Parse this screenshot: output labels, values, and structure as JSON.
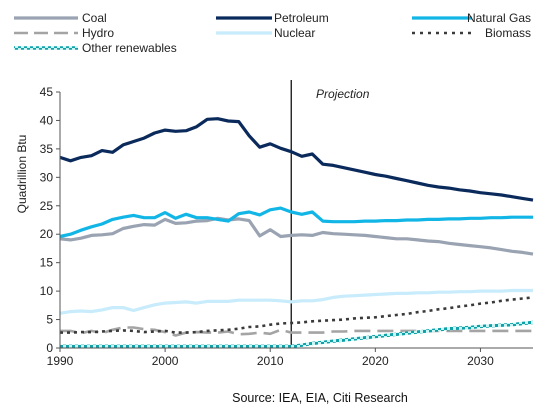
{
  "chart_data": {
    "type": "line",
    "title": "",
    "xlabel": "",
    "ylabel": "Quadrillion Btu",
    "xlim": [
      1990,
      2035
    ],
    "ylim": [
      0,
      45
    ],
    "x_ticks": [
      "1990",
      "2000",
      "2010",
      "2020",
      "2030"
    ],
    "y_ticks": [
      "0",
      "5",
      "10",
      "15",
      "20",
      "25",
      "30",
      "35",
      "40",
      "45"
    ],
    "grid": false,
    "legend": "top",
    "annotation": {
      "label": "Projection",
      "x": 2012
    },
    "source": "Source: IEA, EIA, Citi Research",
    "x": [
      1990,
      1991,
      1992,
      1993,
      1994,
      1995,
      1996,
      1997,
      1998,
      1999,
      2000,
      2001,
      2002,
      2003,
      2004,
      2005,
      2006,
      2007,
      2008,
      2009,
      2010,
      2011,
      2012,
      2013,
      2014,
      2015,
      2016,
      2017,
      2018,
      2019,
      2020,
      2021,
      2022,
      2023,
      2024,
      2025,
      2026,
      2027,
      2028,
      2029,
      2030,
      2031,
      2032,
      2033,
      2034,
      2035
    ],
    "series": [
      {
        "name": "Coal",
        "color": "#9aa3b2",
        "dash": "solid",
        "width": 3.2,
        "values": [
          19.2,
          19.0,
          19.3,
          19.8,
          19.9,
          20.1,
          21.0,
          21.4,
          21.7,
          21.6,
          22.6,
          21.9,
          22.0,
          22.3,
          22.4,
          22.8,
          22.5,
          22.7,
          22.4,
          19.7,
          20.8,
          19.6,
          19.8,
          19.9,
          19.8,
          20.3,
          20.1,
          20.0,
          19.9,
          19.8,
          19.6,
          19.4,
          19.2,
          19.2,
          19.0,
          18.8,
          18.7,
          18.4,
          18.2,
          18.0,
          17.8,
          17.6,
          17.3,
          17.0,
          16.8,
          16.5
        ]
      },
      {
        "name": "Petroleum",
        "color": "#0b2a5c",
        "dash": "solid",
        "width": 3.2,
        "values": [
          33.5,
          32.9,
          33.5,
          33.8,
          34.7,
          34.4,
          35.7,
          36.3,
          36.9,
          37.8,
          38.3,
          38.1,
          38.2,
          38.9,
          40.2,
          40.3,
          39.9,
          39.8,
          37.3,
          35.3,
          35.9,
          35.1,
          34.5,
          33.7,
          34.1,
          32.3,
          32.1,
          31.7,
          31.3,
          30.9,
          30.5,
          30.2,
          29.8,
          29.4,
          29.0,
          28.6,
          28.3,
          28.1,
          27.8,
          27.6,
          27.3,
          27.1,
          26.9,
          26.6,
          26.3,
          26.0
        ]
      },
      {
        "name": "Natural Gas",
        "color": "#12b6e6",
        "dash": "solid",
        "width": 3.2,
        "values": [
          19.6,
          20.0,
          20.7,
          21.3,
          21.8,
          22.6,
          23.0,
          23.3,
          22.9,
          22.9,
          23.8,
          22.8,
          23.5,
          22.9,
          22.9,
          22.6,
          22.3,
          23.6,
          23.9,
          23.4,
          24.3,
          24.6,
          23.9,
          23.5,
          23.9,
          22.3,
          22.2,
          22.2,
          22.2,
          22.3,
          22.3,
          22.4,
          22.4,
          22.5,
          22.5,
          22.6,
          22.6,
          22.7,
          22.7,
          22.8,
          22.8,
          22.9,
          22.9,
          23.0,
          23.0,
          23.0
        ]
      },
      {
        "name": "Hydro",
        "color": "#a4a4a4",
        "dash": "longdash",
        "width": 2.6,
        "values": [
          3.0,
          3.0,
          2.6,
          3.0,
          2.6,
          3.2,
          3.6,
          3.6,
          3.3,
          3.2,
          2.8,
          2.2,
          2.7,
          2.8,
          2.7,
          2.7,
          2.9,
          2.4,
          2.5,
          2.7,
          2.5,
          3.2,
          2.7,
          2.7,
          2.7,
          2.7,
          2.9,
          2.9,
          3.0,
          3.0,
          3.0,
          3.0,
          3.0,
          3.0,
          3.0,
          3.0,
          3.0,
          3.0,
          3.0,
          3.0,
          3.0,
          3.0,
          3.0,
          3.0,
          3.0,
          3.0
        ]
      },
      {
        "name": "Nuclear",
        "color": "#c8ecfb",
        "dash": "solid",
        "width": 3.2,
        "values": [
          6.1,
          6.4,
          6.5,
          6.4,
          6.7,
          7.1,
          7.1,
          6.6,
          7.1,
          7.6,
          7.9,
          8.0,
          8.1,
          7.9,
          8.2,
          8.2,
          8.2,
          8.4,
          8.4,
          8.4,
          8.4,
          8.3,
          8.1,
          8.3,
          8.3,
          8.5,
          8.9,
          9.1,
          9.2,
          9.3,
          9.4,
          9.5,
          9.6,
          9.6,
          9.7,
          9.7,
          9.8,
          9.8,
          9.9,
          9.9,
          10.0,
          10.0,
          10.0,
          10.1,
          10.1,
          10.1
        ]
      },
      {
        "name": "Biomass",
        "color": "#3a3a3a",
        "dash": "dot",
        "width": 2.6,
        "values": [
          2.7,
          2.7,
          2.8,
          2.8,
          2.9,
          3.0,
          3.1,
          3.0,
          2.8,
          2.9,
          3.0,
          2.7,
          2.7,
          2.8,
          3.0,
          3.1,
          3.2,
          3.4,
          3.7,
          3.8,
          4.1,
          4.3,
          4.4,
          4.5,
          4.7,
          4.8,
          4.9,
          5.0,
          5.2,
          5.3,
          5.4,
          5.6,
          5.8,
          6.0,
          6.3,
          6.5,
          6.8,
          7.0,
          7.3,
          7.5,
          7.8,
          8.0,
          8.3,
          8.5,
          8.7,
          8.9
        ]
      },
      {
        "name": "Other renewables",
        "color": "#10a0a8",
        "dash": "checker",
        "width": 3.4,
        "values": [
          0.3,
          0.3,
          0.3,
          0.3,
          0.3,
          0.3,
          0.3,
          0.3,
          0.3,
          0.3,
          0.3,
          0.3,
          0.3,
          0.3,
          0.3,
          0.3,
          0.3,
          0.3,
          0.3,
          0.3,
          0.3,
          0.3,
          0.3,
          0.5,
          0.8,
          1.0,
          1.2,
          1.4,
          1.6,
          1.8,
          2.0,
          2.2,
          2.4,
          2.6,
          2.8,
          3.0,
          3.2,
          3.4,
          3.5,
          3.6,
          3.8,
          3.9,
          4.0,
          4.1,
          4.3,
          4.5
        ]
      }
    ]
  }
}
